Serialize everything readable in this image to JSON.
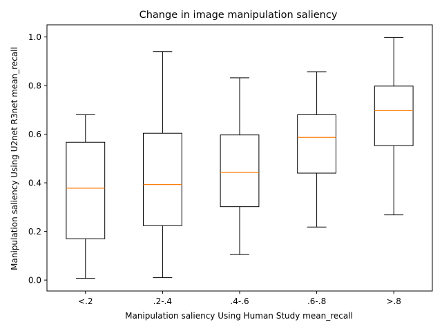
{
  "chart_data": {
    "type": "box",
    "title": "Change in image manipulation saliency",
    "xlabel": "Manipulation saliency Using Human Study mean_recall",
    "ylabel": "Manipulation saliency Using U2net R3net mean_recall",
    "categories": [
      "<.2",
      ".2-.4",
      ".4-.6",
      ".6-.8",
      ">.8"
    ],
    "ylim": [
      -0.045,
      1.05
    ],
    "yticks": [
      0.0,
      0.2,
      0.4,
      0.6,
      0.8,
      1.0
    ],
    "ytick_labels": [
      "0.0",
      "0.2",
      "0.4",
      "0.6",
      "0.8",
      "1.0"
    ],
    "boxes": [
      {
        "whisker_low": 0.007,
        "q1": 0.17,
        "median": 0.378,
        "q3": 0.567,
        "whisker_high": 0.68
      },
      {
        "whisker_low": 0.01,
        "q1": 0.224,
        "median": 0.393,
        "q3": 0.604,
        "whisker_high": 0.94
      },
      {
        "whisker_low": 0.105,
        "q1": 0.302,
        "median": 0.443,
        "q3": 0.597,
        "whisker_high": 0.832
      },
      {
        "whisker_low": 0.218,
        "q1": 0.44,
        "median": 0.587,
        "q3": 0.68,
        "whisker_high": 0.857
      },
      {
        "whisker_low": 0.268,
        "q1": 0.553,
        "median": 0.697,
        "q3": 0.798,
        "whisker_high": 0.998
      }
    ],
    "grid": false,
    "colors": {
      "box": "#000000",
      "median": "#ff7f0e"
    }
  }
}
